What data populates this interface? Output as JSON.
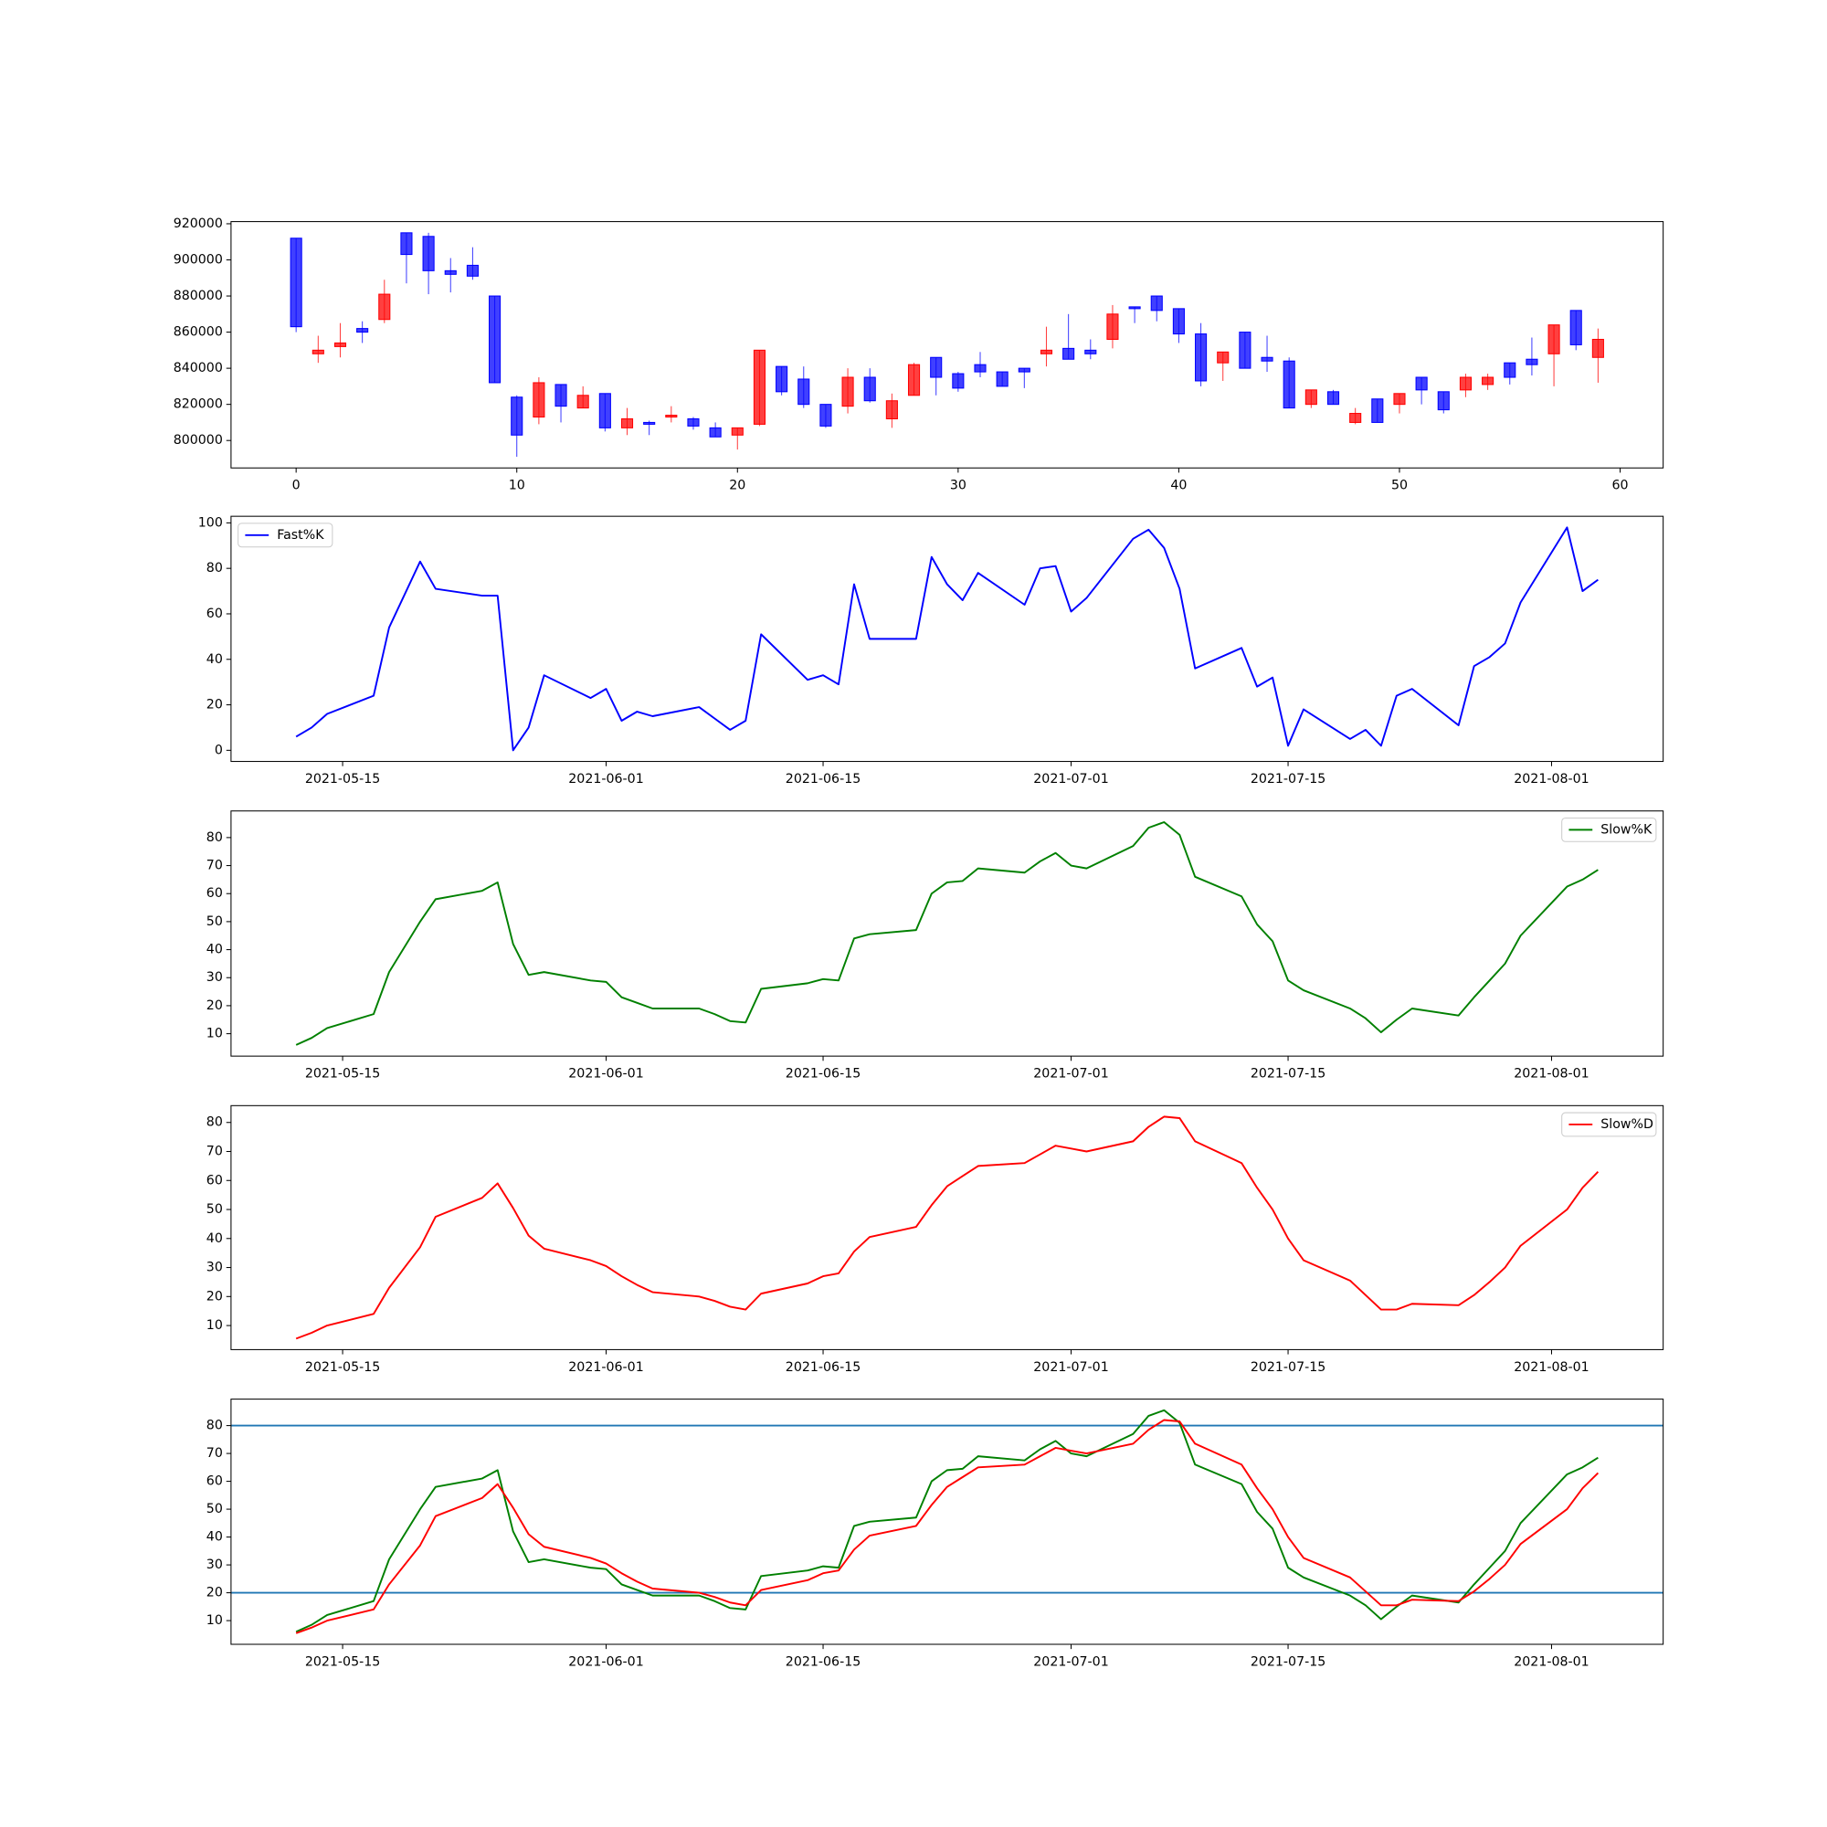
{
  "chart_data": [
    {
      "type": "candlestick",
      "x": [
        0,
        1,
        2,
        3,
        4,
        5,
        6,
        7,
        8,
        9,
        10,
        11,
        12,
        13,
        14,
        15,
        16,
        17,
        18,
        19,
        20,
        21,
        22,
        23,
        24,
        25,
        26,
        27,
        28,
        29,
        30,
        31,
        32,
        33,
        34,
        35,
        36,
        37,
        38,
        39,
        40,
        41,
        42,
        43,
        44,
        45,
        46,
        47,
        48,
        49,
        50,
        51,
        52,
        53,
        54,
        55,
        56,
        57,
        58,
        59
      ],
      "open": [
        912000,
        848000,
        852000,
        862000,
        867000,
        915000,
        913000,
        894000,
        897000,
        880000,
        824000,
        813000,
        831000,
        818000,
        826000,
        807000,
        810000,
        813000,
        812000,
        807000,
        803000,
        809000,
        841000,
        834000,
        820000,
        819000,
        835000,
        812000,
        825000,
        846000,
        837000,
        842000,
        838000,
        840000,
        848000,
        851000,
        850000,
        856000,
        874000,
        880000,
        873000,
        859000,
        843000,
        860000,
        846000,
        844000,
        820000,
        827000,
        810000,
        823000,
        820000,
        835000,
        827000,
        828000,
        831000,
        843000,
        845000,
        848000,
        872000,
        846000
      ],
      "high": [
        912000,
        858000,
        865000,
        866000,
        889000,
        915000,
        915000,
        901000,
        907000,
        880000,
        825000,
        835000,
        831000,
        830000,
        826000,
        818000,
        811000,
        819000,
        813000,
        810000,
        807000,
        850000,
        841000,
        841000,
        820000,
        840000,
        840000,
        826000,
        843000,
        846000,
        838000,
        849000,
        838000,
        840000,
        863000,
        870000,
        856000,
        875000,
        874000,
        880000,
        873000,
        865000,
        849000,
        860000,
        858000,
        846000,
        828000,
        828000,
        818000,
        823000,
        826000,
        835000,
        827000,
        837000,
        837000,
        843000,
        857000,
        864000,
        872000,
        862000
      ],
      "low": [
        860000,
        843000,
        846000,
        854000,
        865000,
        887000,
        881000,
        882000,
        889000,
        832000,
        791000,
        809000,
        810000,
        818000,
        805000,
        803000,
        803000,
        810000,
        806000,
        802000,
        795000,
        808000,
        825000,
        818000,
        807000,
        815000,
        821000,
        807000,
        825000,
        825000,
        827000,
        835000,
        830000,
        829000,
        841000,
        845000,
        845000,
        851000,
        865000,
        866000,
        854000,
        830000,
        833000,
        840000,
        838000,
        818000,
        818000,
        820000,
        809000,
        810000,
        815000,
        820000,
        815000,
        824000,
        828000,
        831000,
        836000,
        830000,
        850000,
        832000
      ],
      "close": [
        863000,
        850000,
        854000,
        860000,
        881000,
        903000,
        894000,
        892000,
        891000,
        832000,
        803000,
        832000,
        819000,
        825000,
        807000,
        812000,
        809000,
        814000,
        808000,
        802000,
        807000,
        850000,
        827000,
        820000,
        808000,
        835000,
        822000,
        822000,
        842000,
        835000,
        829000,
        838000,
        830000,
        838000,
        850000,
        845000,
        848000,
        870000,
        873000,
        872000,
        859000,
        833000,
        849000,
        840000,
        844000,
        818000,
        828000,
        820000,
        815000,
        810000,
        826000,
        828000,
        817000,
        835000,
        835000,
        835000,
        842000,
        864000,
        853000,
        856000
      ],
      "up_color": "#ff0000",
      "down_color": "#0000ff",
      "alpha": 0.75,
      "candle_width": 0.5,
      "xlim": [
        -2.95,
        61.95
      ],
      "xticks": [
        0,
        10,
        20,
        30,
        40,
        50,
        60
      ],
      "ylim": [
        784800,
        921200
      ],
      "yticks": [
        800000,
        820000,
        840000,
        860000,
        880000,
        900000,
        920000
      ]
    },
    {
      "type": "line",
      "x": [
        "2021-05-12",
        "2021-05-13",
        "2021-05-14",
        "2021-05-17",
        "2021-05-18",
        "2021-05-20",
        "2021-05-21",
        "2021-05-24",
        "2021-05-25",
        "2021-05-26",
        "2021-05-27",
        "2021-05-28",
        "2021-05-31",
        "2021-06-01",
        "2021-06-02",
        "2021-06-03",
        "2021-06-04",
        "2021-06-07",
        "2021-06-08",
        "2021-06-09",
        "2021-06-10",
        "2021-06-11",
        "2021-06-14",
        "2021-06-15",
        "2021-06-16",
        "2021-06-17",
        "2021-06-18",
        "2021-06-21",
        "2021-06-22",
        "2021-06-23",
        "2021-06-24",
        "2021-06-25",
        "2021-06-28",
        "2021-06-29",
        "2021-06-30",
        "2021-07-01",
        "2021-07-02",
        "2021-07-05",
        "2021-07-06",
        "2021-07-07",
        "2021-07-08",
        "2021-07-09",
        "2021-07-12",
        "2021-07-13",
        "2021-07-14",
        "2021-07-15",
        "2021-07-16",
        "2021-07-19",
        "2021-07-20",
        "2021-07-21",
        "2021-07-22",
        "2021-07-23",
        "2021-07-26",
        "2021-07-27",
        "2021-07-28",
        "2021-07-29",
        "2021-07-30",
        "2021-08-02",
        "2021-08-03",
        "2021-08-04"
      ],
      "series": [
        {
          "name": "Fast%K",
          "color": "#0000ff",
          "values": [
            6,
            10,
            16,
            24,
            54,
            83,
            71,
            68,
            68,
            0,
            10,
            33,
            23,
            27,
            13,
            17,
            15,
            19,
            14,
            9,
            13,
            51,
            31,
            33,
            29,
            73,
            49,
            49,
            85,
            73,
            66,
            78,
            64,
            80,
            81,
            61,
            67,
            93,
            97,
            89,
            71,
            36,
            45,
            28,
            32,
            2,
            18,
            5,
            9,
            2,
            24,
            27,
            11,
            37,
            41,
            47,
            65,
            98,
            70,
            75
          ]
        }
      ],
      "legend": "upper left",
      "xlim": [
        "2021-05-07T19:12:00Z",
        "2021-08-08T04:48:00Z"
      ],
      "xticks": [
        "2021-05-15",
        "2021-06-01",
        "2021-06-15",
        "2021-07-01",
        "2021-07-15",
        "2021-08-01"
      ],
      "ylim": [
        -4.9,
        102.9
      ],
      "yticks": [
        0,
        20,
        40,
        60,
        80,
        100
      ]
    },
    {
      "type": "line",
      "x": [
        "2021-05-12",
        "2021-05-13",
        "2021-05-14",
        "2021-05-17",
        "2021-05-18",
        "2021-05-20",
        "2021-05-21",
        "2021-05-24",
        "2021-05-25",
        "2021-05-26",
        "2021-05-27",
        "2021-05-28",
        "2021-05-31",
        "2021-06-01",
        "2021-06-02",
        "2021-06-03",
        "2021-06-04",
        "2021-06-07",
        "2021-06-08",
        "2021-06-09",
        "2021-06-10",
        "2021-06-11",
        "2021-06-14",
        "2021-06-15",
        "2021-06-16",
        "2021-06-17",
        "2021-06-18",
        "2021-06-21",
        "2021-06-22",
        "2021-06-23",
        "2021-06-24",
        "2021-06-25",
        "2021-06-28",
        "2021-06-29",
        "2021-06-30",
        "2021-07-01",
        "2021-07-02",
        "2021-07-05",
        "2021-07-06",
        "2021-07-07",
        "2021-07-08",
        "2021-07-09",
        "2021-07-12",
        "2021-07-13",
        "2021-07-14",
        "2021-07-15",
        "2021-07-16",
        "2021-07-19",
        "2021-07-20",
        "2021-07-21",
        "2021-07-22",
        "2021-07-23",
        "2021-07-26",
        "2021-07-27",
        "2021-07-28",
        "2021-07-29",
        "2021-07-30",
        "2021-08-02",
        "2021-08-03",
        "2021-08-04"
      ],
      "series": [
        {
          "name": "Slow%K",
          "color": "#008000",
          "values": [
            6,
            8.5,
            12,
            17,
            32,
            50,
            58,
            61,
            64,
            42,
            31,
            32,
            29,
            28.5,
            23,
            21,
            19,
            19,
            17,
            14.5,
            14,
            26,
            28,
            29.5,
            29,
            44,
            45.5,
            47,
            60,
            64,
            64.5,
            69,
            67.5,
            71.5,
            74.5,
            70,
            69,
            77,
            83.5,
            85.5,
            81,
            66,
            59,
            49,
            43,
            29,
            25.5,
            19,
            15.5,
            10.5,
            15,
            19,
            16.5,
            23,
            29,
            35,
            45,
            62.5,
            65,
            68.5
          ]
        }
      ],
      "legend": "upper right",
      "xlim": [
        "2021-05-07T19:12:00Z",
        "2021-08-08T04:48:00Z"
      ],
      "xticks": [
        "2021-05-15",
        "2021-06-01",
        "2021-06-15",
        "2021-07-01",
        "2021-07-15",
        "2021-08-01"
      ],
      "ylim": [
        2.0,
        89.5
      ],
      "yticks": [
        10,
        20,
        30,
        40,
        50,
        60,
        70,
        80
      ]
    },
    {
      "type": "line",
      "x": [
        "2021-05-12",
        "2021-05-13",
        "2021-05-14",
        "2021-05-17",
        "2021-05-18",
        "2021-05-20",
        "2021-05-21",
        "2021-05-24",
        "2021-05-25",
        "2021-05-26",
        "2021-05-27",
        "2021-05-28",
        "2021-05-31",
        "2021-06-01",
        "2021-06-02",
        "2021-06-03",
        "2021-06-04",
        "2021-06-07",
        "2021-06-08",
        "2021-06-09",
        "2021-06-10",
        "2021-06-11",
        "2021-06-14",
        "2021-06-15",
        "2021-06-16",
        "2021-06-17",
        "2021-06-18",
        "2021-06-21",
        "2021-06-22",
        "2021-06-23",
        "2021-06-24",
        "2021-06-25",
        "2021-06-28",
        "2021-06-29",
        "2021-06-30",
        "2021-07-01",
        "2021-07-02",
        "2021-07-05",
        "2021-07-06",
        "2021-07-07",
        "2021-07-08",
        "2021-07-09",
        "2021-07-12",
        "2021-07-13",
        "2021-07-14",
        "2021-07-15",
        "2021-07-16",
        "2021-07-19",
        "2021-07-20",
        "2021-07-21",
        "2021-07-22",
        "2021-07-23",
        "2021-07-26",
        "2021-07-27",
        "2021-07-28",
        "2021-07-29",
        "2021-07-30",
        "2021-08-02",
        "2021-08-03",
        "2021-08-04"
      ],
      "series": [
        {
          "name": "Slow%D",
          "color": "#ff0000",
          "values": [
            5.5,
            7.5,
            10,
            14,
            23,
            37,
            47.5,
            54,
            59,
            50.5,
            41,
            36.5,
            32.5,
            30.5,
            27,
            24,
            21.5,
            20,
            18.5,
            16.5,
            15.5,
            21,
            24.5,
            27,
            28,
            35.5,
            40.5,
            44,
            51.5,
            58,
            61.5,
            65,
            66,
            69,
            72,
            71,
            70,
            73.5,
            78.5,
            82,
            81.5,
            73.5,
            66,
            57.5,
            50,
            40,
            32.5,
            25.5,
            20.5,
            15.5,
            15.5,
            17.5,
            17,
            20.5,
            25,
            30,
            37.5,
            50,
            57.5,
            63
          ]
        }
      ],
      "legend": "upper right",
      "xlim": [
        "2021-05-07T19:12:00Z",
        "2021-08-08T04:48:00Z"
      ],
      "xticks": [
        "2021-05-15",
        "2021-06-01",
        "2021-06-15",
        "2021-07-01",
        "2021-07-15",
        "2021-08-01"
      ],
      "ylim": [
        1.7,
        85.8
      ],
      "yticks": [
        10,
        20,
        30,
        40,
        50,
        60,
        70,
        80
      ]
    },
    {
      "type": "line",
      "x": [
        "2021-05-12",
        "2021-05-13",
        "2021-05-14",
        "2021-05-17",
        "2021-05-18",
        "2021-05-20",
        "2021-05-21",
        "2021-05-24",
        "2021-05-25",
        "2021-05-26",
        "2021-05-27",
        "2021-05-28",
        "2021-05-31",
        "2021-06-01",
        "2021-06-02",
        "2021-06-03",
        "2021-06-04",
        "2021-06-07",
        "2021-06-08",
        "2021-06-09",
        "2021-06-10",
        "2021-06-11",
        "2021-06-14",
        "2021-06-15",
        "2021-06-16",
        "2021-06-17",
        "2021-06-18",
        "2021-06-21",
        "2021-06-22",
        "2021-06-23",
        "2021-06-24",
        "2021-06-25",
        "2021-06-28",
        "2021-06-29",
        "2021-06-30",
        "2021-07-01",
        "2021-07-02",
        "2021-07-05",
        "2021-07-06",
        "2021-07-07",
        "2021-07-08",
        "2021-07-09",
        "2021-07-12",
        "2021-07-13",
        "2021-07-14",
        "2021-07-15",
        "2021-07-16",
        "2021-07-19",
        "2021-07-20",
        "2021-07-21",
        "2021-07-22",
        "2021-07-23",
        "2021-07-26",
        "2021-07-27",
        "2021-07-28",
        "2021-07-29",
        "2021-07-30",
        "2021-08-02",
        "2021-08-03",
        "2021-08-04"
      ],
      "series": [
        {
          "color": "#008000",
          "values": [
            6,
            8.5,
            12,
            17,
            32,
            50,
            58,
            61,
            64,
            42,
            31,
            32,
            29,
            28.5,
            23,
            21,
            19,
            19,
            17,
            14.5,
            14,
            26,
            28,
            29.5,
            29,
            44,
            45.5,
            47,
            60,
            64,
            64.5,
            69,
            67.5,
            71.5,
            74.5,
            70,
            69,
            77,
            83.5,
            85.5,
            81,
            66,
            59,
            49,
            43,
            29,
            25.5,
            19,
            15.5,
            10.5,
            15,
            19,
            16.5,
            23,
            29,
            35,
            45,
            62.5,
            65,
            68.5
          ]
        },
        {
          "color": "#ff0000",
          "values": [
            5.5,
            7.5,
            10,
            14,
            23,
            37,
            47.5,
            54,
            59,
            50.5,
            41,
            36.5,
            32.5,
            30.5,
            27,
            24,
            21.5,
            20,
            18.5,
            16.5,
            15.5,
            21,
            24.5,
            27,
            28,
            35.5,
            40.5,
            44,
            51.5,
            58,
            61.5,
            65,
            66,
            69,
            72,
            71,
            70,
            73.5,
            78.5,
            82,
            81.5,
            73.5,
            66,
            57.5,
            50,
            40,
            32.5,
            25.5,
            20.5,
            15.5,
            15.5,
            17.5,
            17,
            20.5,
            25,
            30,
            37.5,
            50,
            57.5,
            63
          ]
        }
      ],
      "hlines": [
        80,
        20
      ],
      "hline_color": "#1f77b4",
      "xlim": [
        "2021-05-07T19:12:00Z",
        "2021-08-08T04:48:00Z"
      ],
      "xticks": [
        "2021-05-15",
        "2021-06-01",
        "2021-06-15",
        "2021-07-01",
        "2021-07-15",
        "2021-08-01"
      ],
      "ylim": [
        1.5,
        89.5
      ],
      "yticks": [
        10,
        20,
        30,
        40,
        50,
        60,
        70,
        80
      ]
    }
  ]
}
